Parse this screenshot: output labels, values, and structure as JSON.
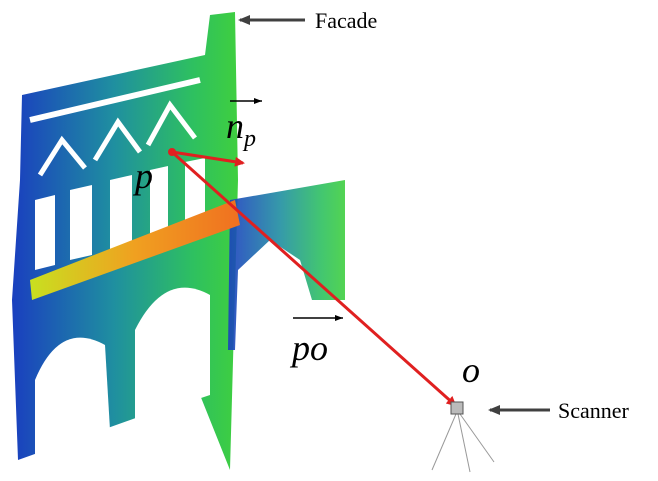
{
  "labels": {
    "facade": "Facade",
    "scanner": "Scanner",
    "point_p": "p",
    "point_o": "o",
    "normal": {
      "base": "n",
      "subscript": "p"
    },
    "vector": "po"
  }
}
